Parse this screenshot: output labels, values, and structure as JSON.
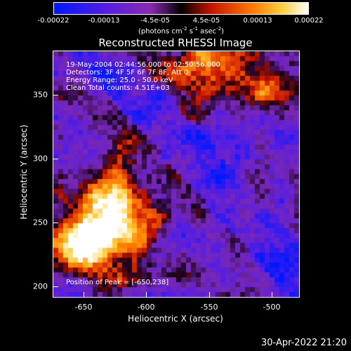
{
  "colorbar": {
    "ticks": [
      "-0.00022",
      "-0.00013",
      "-4.5e-05",
      "4.5e-05",
      "0.00013",
      "0.00022"
    ],
    "unit_prefix": "(photons cm",
    "unit_exp1": "-2",
    "unit_mid1": " s",
    "unit_exp2": "-1",
    "unit_mid2": " asec",
    "unit_exp3": "-2",
    "unit_suffix": ")"
  },
  "title": "Reconstructed RHESSI Image",
  "annotations": {
    "time": "19-May-2004 02:44:56.000 to 02:50:56.000",
    "detectors": "Detectors: 3F 4F 5F 6F 7F 8F, Att 0",
    "energy": "Energy Range: 25.0 - 50.0 keV",
    "method": "Clean    Total counts: 4.51E+03",
    "peak": "Position of Peak = [-650,238]"
  },
  "axes": {
    "xlabel": "Heliocentric X (arcsec)",
    "ylabel": "Heliocentric Y (arcsec)",
    "xticks": [
      "-650",
      "-600",
      "-550",
      "-500"
    ],
    "yticks": [
      "350",
      "300",
      "250",
      "200"
    ],
    "xlim": [
      -675,
      -480
    ],
    "ylim": [
      190,
      385
    ]
  },
  "timestamp": "30-Apr-2022 21:20",
  "colors": {
    "background": "#000000",
    "text": "#ffffff",
    "colormap": [
      "#0000ff",
      "#6a00b4",
      "#000000",
      "#c81e00",
      "#ff8c00",
      "#ffff64",
      "#ffffff"
    ]
  }
}
